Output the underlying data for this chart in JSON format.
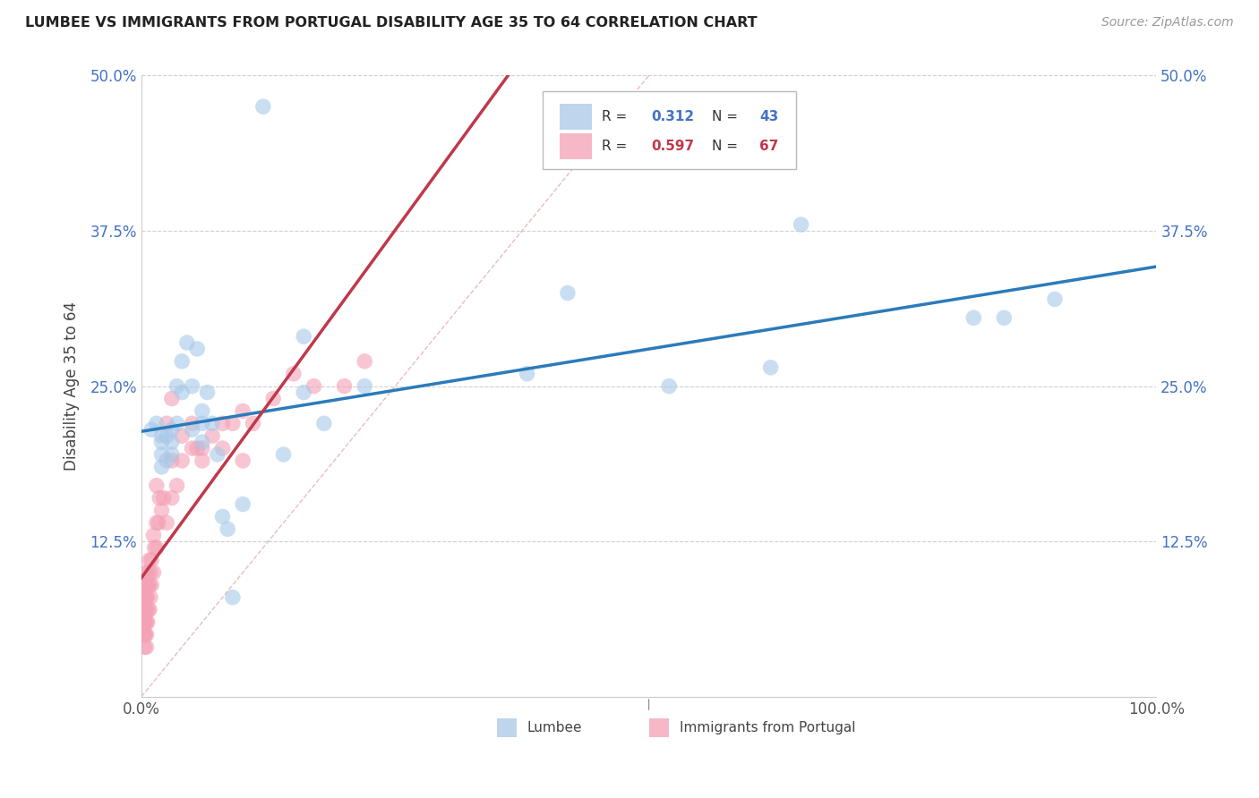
{
  "title": "LUMBEE VS IMMIGRANTS FROM PORTUGAL DISABILITY AGE 35 TO 64 CORRELATION CHART",
  "source": "Source: ZipAtlas.com",
  "ylabel": "Disability Age 35 to 64",
  "xlim": [
    0,
    1.0
  ],
  "ylim": [
    0.0,
    0.5
  ],
  "ytick_positions": [
    0.0,
    0.125,
    0.25,
    0.375,
    0.5
  ],
  "ytick_labels": [
    "",
    "12.5%",
    "25.0%",
    "37.5%",
    "50.0%"
  ],
  "xtick_positions": [
    0.0,
    0.1,
    0.2,
    0.3,
    0.4,
    0.5,
    0.6,
    0.7,
    0.8,
    0.9,
    1.0
  ],
  "xtick_labels": [
    "0.0%",
    "",
    "",
    "",
    "",
    "",
    "",
    "",
    "",
    "",
    "100.0%"
  ],
  "blue_color": "#a8c8e8",
  "pink_color": "#f4a0b5",
  "blue_line_color": "#2b7bba",
  "pink_line_color": "#c0384b",
  "diagonal_color": "#d0d0d0",
  "legend1_r": "0.312",
  "legend1_n": "43",
  "legend2_r": "0.597",
  "legend2_n": "67",
  "lumbee_x": [
    0.01,
    0.015,
    0.02,
    0.02,
    0.02,
    0.025,
    0.025,
    0.03,
    0.03,
    0.035,
    0.035,
    0.04,
    0.04,
    0.045,
    0.05,
    0.05,
    0.055,
    0.06,
    0.06,
    0.065,
    0.07,
    0.075,
    0.08,
    0.085,
    0.09,
    0.1,
    0.12,
    0.14,
    0.16,
    0.18,
    0.22,
    0.38,
    0.42,
    0.52,
    0.62,
    0.65,
    0.82,
    0.85,
    0.9,
    0.02,
    0.03,
    0.16,
    0.06
  ],
  "lumbee_y": [
    0.215,
    0.22,
    0.21,
    0.205,
    0.195,
    0.21,
    0.19,
    0.215,
    0.205,
    0.25,
    0.22,
    0.27,
    0.245,
    0.285,
    0.25,
    0.215,
    0.28,
    0.23,
    0.205,
    0.245,
    0.22,
    0.195,
    0.145,
    0.135,
    0.08,
    0.155,
    0.475,
    0.195,
    0.245,
    0.22,
    0.25,
    0.26,
    0.325,
    0.25,
    0.265,
    0.38,
    0.305,
    0.305,
    0.32,
    0.185,
    0.195,
    0.29,
    0.22
  ],
  "portugal_x": [
    0.002,
    0.002,
    0.002,
    0.003,
    0.003,
    0.003,
    0.003,
    0.003,
    0.004,
    0.004,
    0.004,
    0.004,
    0.004,
    0.005,
    0.005,
    0.005,
    0.005,
    0.005,
    0.005,
    0.005,
    0.006,
    0.006,
    0.006,
    0.007,
    0.007,
    0.008,
    0.008,
    0.008,
    0.009,
    0.009,
    0.01,
    0.01,
    0.012,
    0.012,
    0.013,
    0.015,
    0.015,
    0.015,
    0.017,
    0.018,
    0.02,
    0.022,
    0.025,
    0.03,
    0.03,
    0.035,
    0.04,
    0.05,
    0.055,
    0.06,
    0.07,
    0.08,
    0.09,
    0.1,
    0.11,
    0.13,
    0.15,
    0.17,
    0.2,
    0.22,
    0.025,
    0.03,
    0.04,
    0.05,
    0.06,
    0.08,
    0.1
  ],
  "portugal_y": [
    0.05,
    0.06,
    0.07,
    0.04,
    0.05,
    0.06,
    0.07,
    0.08,
    0.05,
    0.06,
    0.07,
    0.08,
    0.09,
    0.04,
    0.05,
    0.06,
    0.07,
    0.08,
    0.09,
    0.1,
    0.06,
    0.08,
    0.1,
    0.07,
    0.09,
    0.07,
    0.09,
    0.11,
    0.08,
    0.1,
    0.09,
    0.11,
    0.1,
    0.13,
    0.12,
    0.12,
    0.14,
    0.17,
    0.14,
    0.16,
    0.15,
    0.16,
    0.14,
    0.16,
    0.19,
    0.17,
    0.19,
    0.2,
    0.2,
    0.19,
    0.21,
    0.22,
    0.22,
    0.23,
    0.22,
    0.24,
    0.26,
    0.25,
    0.25,
    0.27,
    0.22,
    0.24,
    0.21,
    0.22,
    0.2,
    0.2,
    0.19
  ]
}
